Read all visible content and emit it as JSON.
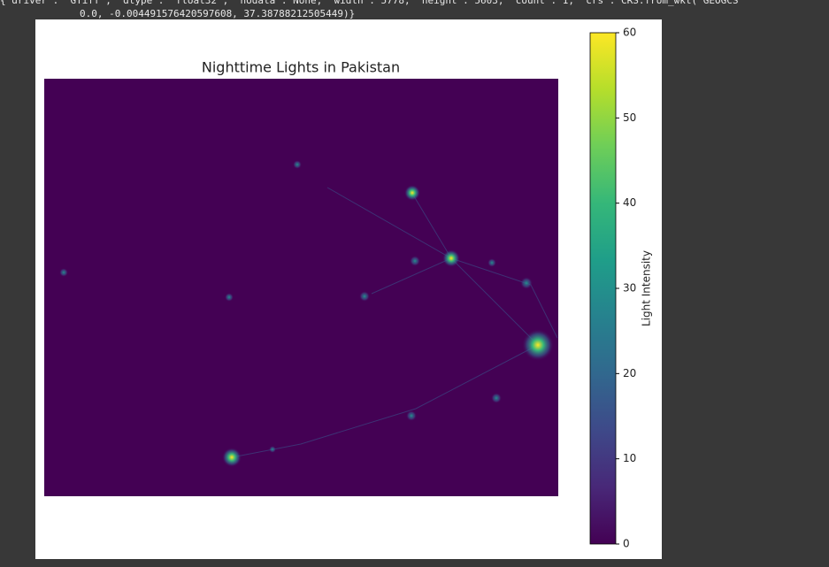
{
  "output": {
    "lines": [
      "{'driver': 'GTiff', 'dtype': 'float32', 'nodata': None, 'width': 5778, 'height': 5603, 'count': 1, 'crs': CRS.from_wkt('GEOGCS",
      "0.0, -0.004491576420597608, 37.38788212505449)}"
    ]
  },
  "chart_data": {
    "type": "heatmap",
    "title": "Nighttime Lights in Pakistan",
    "colormap": "viridis",
    "colorbar": {
      "label": "Light Intensity",
      "lim": [
        0,
        60
      ],
      "ticks": [
        0,
        10,
        20,
        30,
        40,
        50,
        60
      ]
    }
  }
}
